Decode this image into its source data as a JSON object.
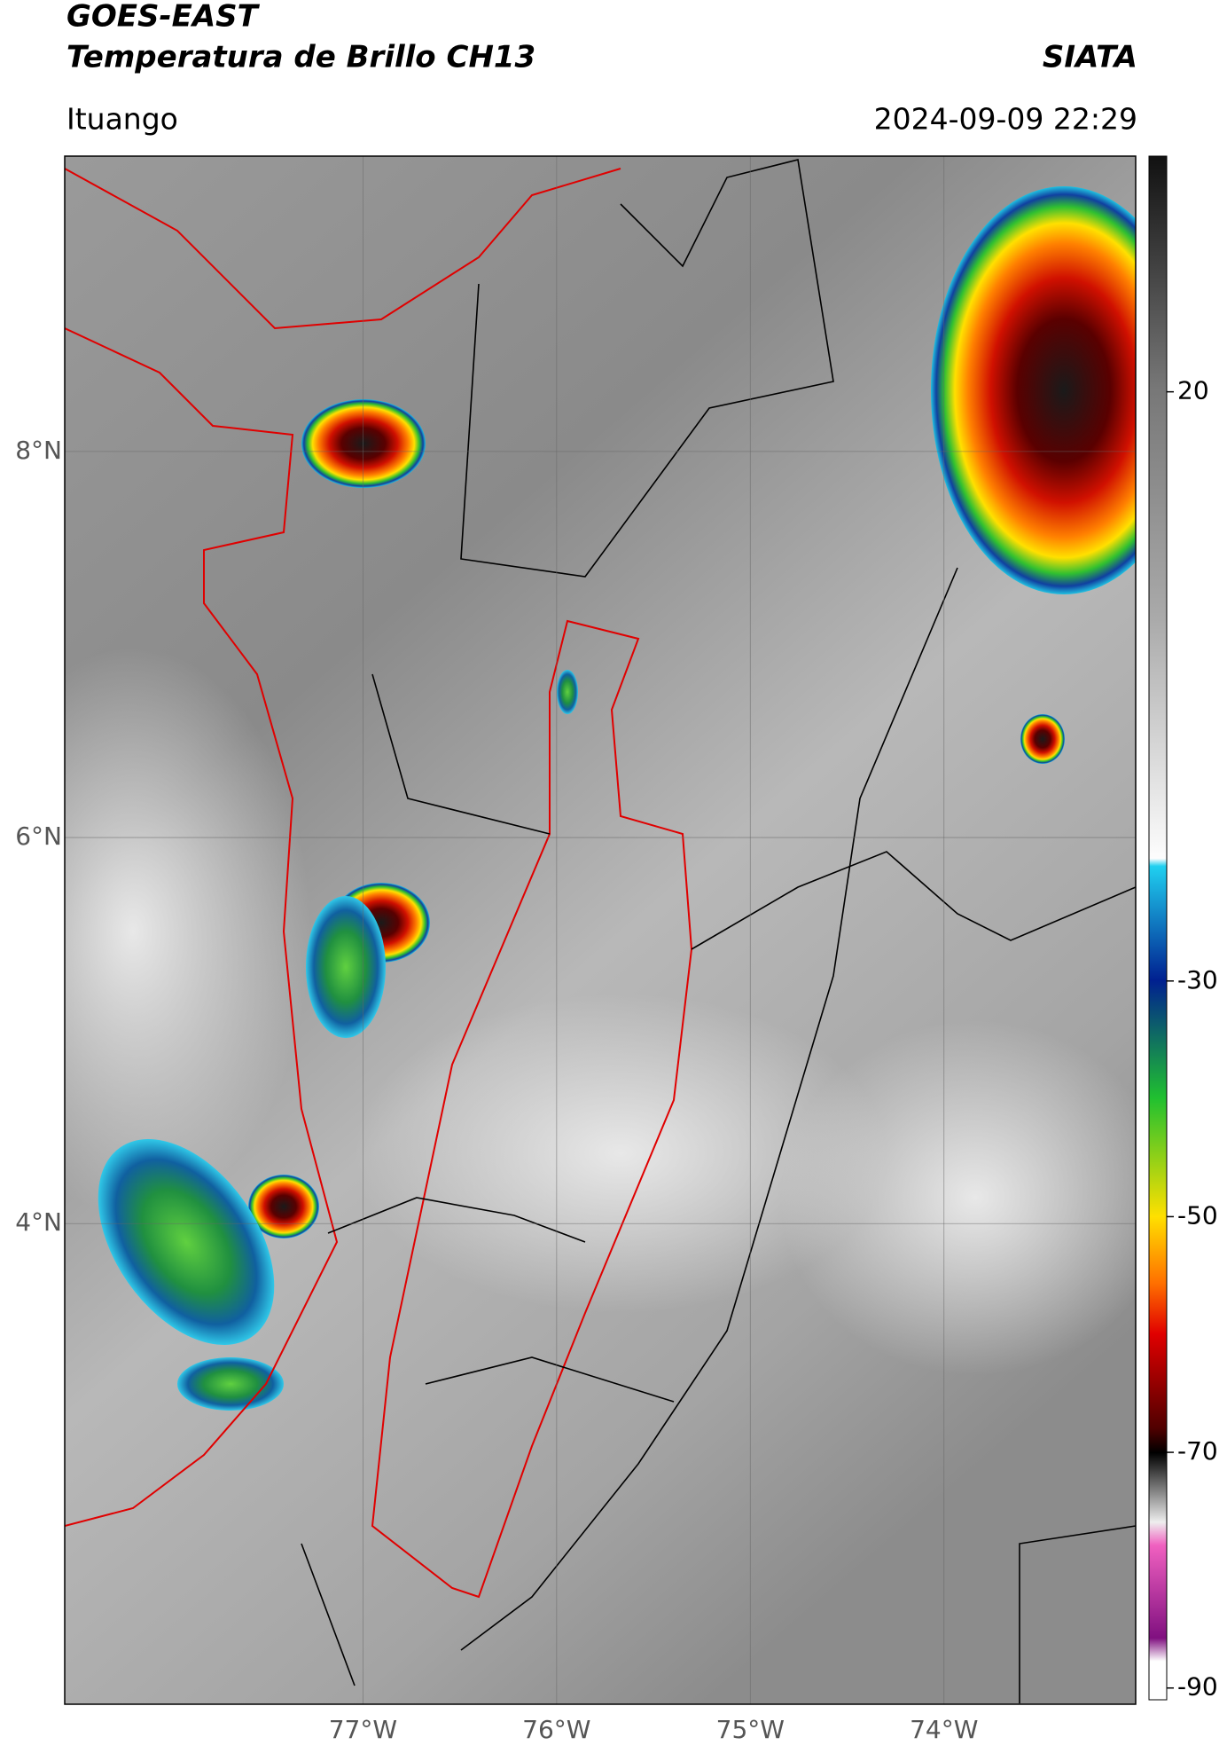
{
  "header": {
    "title": "GOES-EAST",
    "subtitle": "Temperatura de Brillo CH13",
    "source": "SIATA",
    "location": "Ituango",
    "datetime": "2024-09-09 22:29"
  },
  "map": {
    "lon_range": [
      -78.54,
      -73.01
    ],
    "lat_range": [
      1.51,
      9.53
    ],
    "lon_ticks": [
      {
        "value": -77,
        "label": "77°W"
      },
      {
        "value": -76,
        "label": "76°W"
      },
      {
        "value": -75,
        "label": "75°W"
      },
      {
        "value": -74,
        "label": "74°W"
      }
    ],
    "lat_ticks": [
      {
        "value": 8,
        "label": "8°N"
      },
      {
        "value": 6,
        "label": "6°N"
      },
      {
        "value": 4,
        "label": "4°N"
      }
    ]
  },
  "colorbar": {
    "clim": [
      -91,
      40
    ],
    "ticks": [
      20,
      -30,
      -50,
      -70,
      -90
    ]
  }
}
